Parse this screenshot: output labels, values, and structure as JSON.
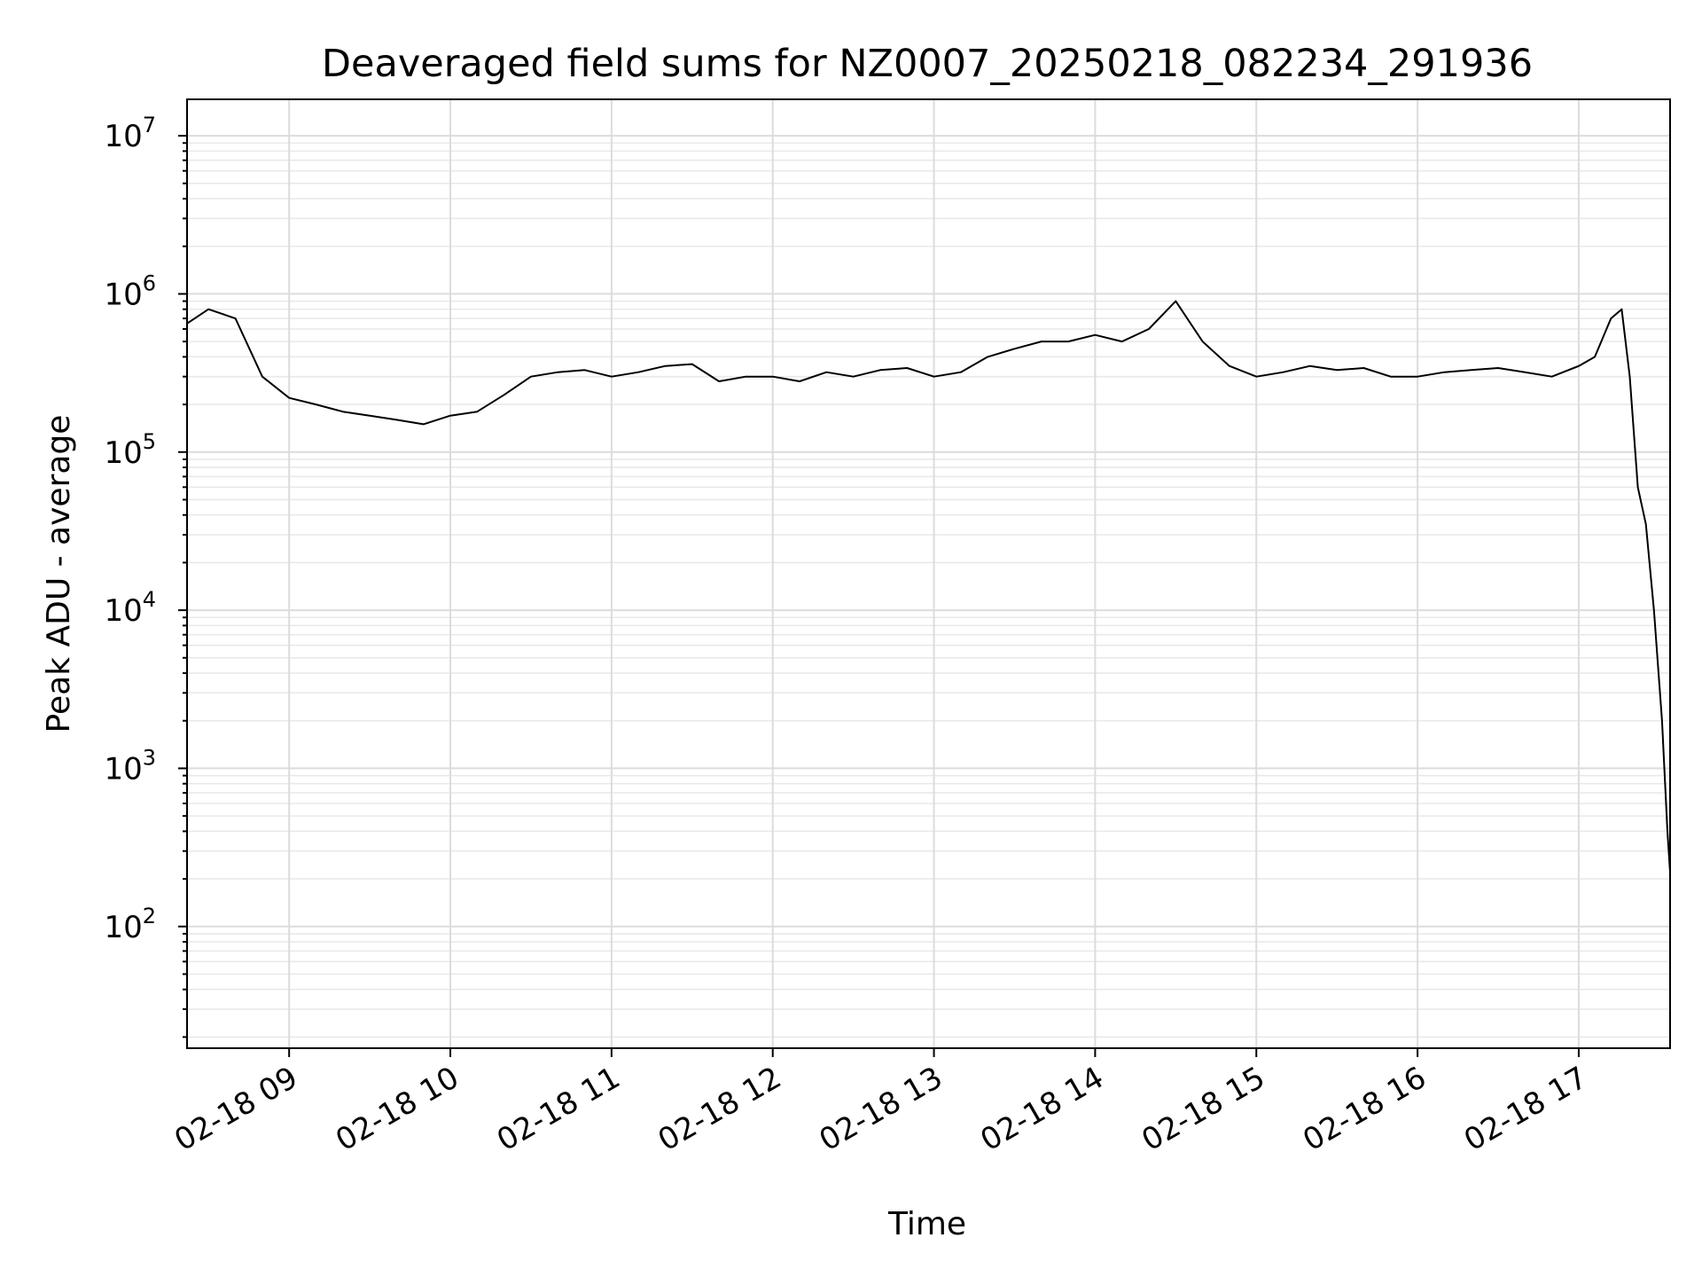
{
  "chart_data": {
    "type": "line",
    "title": "Deaveraged field sums for NZ0007_20250218_082234_291936",
    "xlabel": "Time",
    "ylabel": "Peak ADU - average",
    "y_scale": "log",
    "ylim": [
      17,
      17000000
    ],
    "xlim": [
      "2025-02-18 08:22",
      "2025-02-18 17:34"
    ],
    "x_ticks": [
      {
        "t": "2025-02-18 09:00",
        "label": "02-18 09"
      },
      {
        "t": "2025-02-18 10:00",
        "label": "02-18 10"
      },
      {
        "t": "2025-02-18 11:00",
        "label": "02-18 11"
      },
      {
        "t": "2025-02-18 12:00",
        "label": "02-18 12"
      },
      {
        "t": "2025-02-18 13:00",
        "label": "02-18 13"
      },
      {
        "t": "2025-02-18 14:00",
        "label": "02-18 14"
      },
      {
        "t": "2025-02-18 15:00",
        "label": "02-18 15"
      },
      {
        "t": "2025-02-18 16:00",
        "label": "02-18 16"
      },
      {
        "t": "2025-02-18 17:00",
        "label": "02-18 17"
      }
    ],
    "y_ticks": [
      {
        "value": 100,
        "base": "10",
        "exp": "2"
      },
      {
        "value": 1000,
        "base": "10",
        "exp": "3"
      },
      {
        "value": 10000,
        "base": "10",
        "exp": "4"
      },
      {
        "value": 100000,
        "base": "10",
        "exp": "5"
      },
      {
        "value": 1000000,
        "base": "10",
        "exp": "6"
      },
      {
        "value": 10000000,
        "base": "10",
        "exp": "7"
      }
    ],
    "grid": true,
    "line_color": "#000000",
    "series": [
      {
        "values": [
          [
            "2025-02-18 08:22",
            650000
          ],
          [
            "2025-02-18 08:30",
            800000
          ],
          [
            "2025-02-18 08:40",
            700000
          ],
          [
            "2025-02-18 08:50",
            300000
          ],
          [
            "2025-02-18 09:00",
            220000
          ],
          [
            "2025-02-18 09:10",
            200000
          ],
          [
            "2025-02-18 09:20",
            180000
          ],
          [
            "2025-02-18 09:30",
            170000
          ],
          [
            "2025-02-18 09:40",
            160000
          ],
          [
            "2025-02-18 09:50",
            150000
          ],
          [
            "2025-02-18 10:00",
            170000
          ],
          [
            "2025-02-18 10:10",
            180000
          ],
          [
            "2025-02-18 10:20",
            230000
          ],
          [
            "2025-02-18 10:30",
            300000
          ],
          [
            "2025-02-18 10:40",
            320000
          ],
          [
            "2025-02-18 10:50",
            330000
          ],
          [
            "2025-02-18 11:00",
            300000
          ],
          [
            "2025-02-18 11:10",
            320000
          ],
          [
            "2025-02-18 11:20",
            350000
          ],
          [
            "2025-02-18 11:30",
            360000
          ],
          [
            "2025-02-18 11:40",
            280000
          ],
          [
            "2025-02-18 11:50",
            300000
          ],
          [
            "2025-02-18 12:00",
            300000
          ],
          [
            "2025-02-18 12:10",
            280000
          ],
          [
            "2025-02-18 12:20",
            320000
          ],
          [
            "2025-02-18 12:30",
            300000
          ],
          [
            "2025-02-18 12:40",
            330000
          ],
          [
            "2025-02-18 12:50",
            340000
          ],
          [
            "2025-02-18 13:00",
            300000
          ],
          [
            "2025-02-18 13:10",
            320000
          ],
          [
            "2025-02-18 13:20",
            400000
          ],
          [
            "2025-02-18 13:30",
            450000
          ],
          [
            "2025-02-18 13:40",
            500000
          ],
          [
            "2025-02-18 13:50",
            500000
          ],
          [
            "2025-02-18 14:00",
            550000
          ],
          [
            "2025-02-18 14:10",
            500000
          ],
          [
            "2025-02-18 14:20",
            600000
          ],
          [
            "2025-02-18 14:30",
            900000
          ],
          [
            "2025-02-18 14:40",
            500000
          ],
          [
            "2025-02-18 14:50",
            350000
          ],
          [
            "2025-02-18 15:00",
            300000
          ],
          [
            "2025-02-18 15:10",
            320000
          ],
          [
            "2025-02-18 15:20",
            350000
          ],
          [
            "2025-02-18 15:30",
            330000
          ],
          [
            "2025-02-18 15:40",
            340000
          ],
          [
            "2025-02-18 15:50",
            300000
          ],
          [
            "2025-02-18 16:00",
            300000
          ],
          [
            "2025-02-18 16:10",
            320000
          ],
          [
            "2025-02-18 16:20",
            330000
          ],
          [
            "2025-02-18 16:30",
            340000
          ],
          [
            "2025-02-18 16:40",
            320000
          ],
          [
            "2025-02-18 16:50",
            300000
          ],
          [
            "2025-02-18 17:00",
            350000
          ],
          [
            "2025-02-18 17:06",
            400000
          ],
          [
            "2025-02-18 17:12",
            700000
          ],
          [
            "2025-02-18 17:16",
            800000
          ],
          [
            "2025-02-18 17:19",
            300000
          ],
          [
            "2025-02-18 17:22",
            60000
          ],
          [
            "2025-02-18 17:25",
            35000
          ],
          [
            "2025-02-18 17:28",
            10000
          ],
          [
            "2025-02-18 17:31",
            2000
          ],
          [
            "2025-02-18 17:33",
            400
          ],
          [
            "2025-02-18 17:34",
            220
          ]
        ]
      }
    ]
  }
}
